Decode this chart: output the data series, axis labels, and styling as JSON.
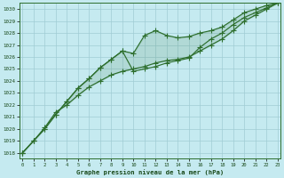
{
  "title": "Graphe pression niveau de la mer (hPa)",
  "background_color": "#c5eaf0",
  "grid_color": "#a0ccd4",
  "line_color": "#2d6e2d",
  "xlim_min": -0.3,
  "xlim_max": 23.3,
  "ylim_min": 1017.5,
  "ylim_max": 1030.5,
  "xticks": [
    0,
    1,
    2,
    3,
    4,
    5,
    6,
    7,
    8,
    9,
    10,
    11,
    12,
    13,
    14,
    15,
    16,
    17,
    18,
    19,
    20,
    21,
    22,
    23
  ],
  "yticks": [
    1018,
    1019,
    1020,
    1021,
    1022,
    1023,
    1024,
    1025,
    1026,
    1027,
    1028,
    1029,
    1030
  ],
  "series_upper_y": [
    1018.0,
    1019.0,
    1020.0,
    1021.2,
    1022.3,
    1023.4,
    1024.2,
    1025.1,
    1025.8,
    1026.5,
    1026.3,
    1027.8,
    1028.2,
    1027.8,
    1027.6,
    1027.7,
    1028.0,
    1028.2,
    1028.5,
    1029.1,
    1029.7,
    1030.0,
    1030.3,
    1030.5
  ],
  "series_lower_y": [
    1018.0,
    1019.0,
    1020.1,
    1021.4,
    1022.0,
    1022.8,
    1023.5,
    1024.0,
    1024.5,
    1024.8,
    1025.0,
    1025.2,
    1025.5,
    1025.7,
    1025.8,
    1026.0,
    1026.5,
    1027.0,
    1027.5,
    1028.2,
    1029.0,
    1029.5,
    1030.0,
    1030.5
  ],
  "series_mid_y": [
    1018.0,
    1019.0,
    1020.0,
    1021.2,
    1022.3,
    1023.4,
    1024.2,
    1025.1,
    1025.8,
    1026.5,
    1024.8,
    1025.0,
    1025.2,
    1025.5,
    1025.7,
    1025.9,
    1026.8,
    1027.5,
    1028.0,
    1028.7,
    1029.3,
    1029.7,
    1030.1,
    1030.5
  ]
}
